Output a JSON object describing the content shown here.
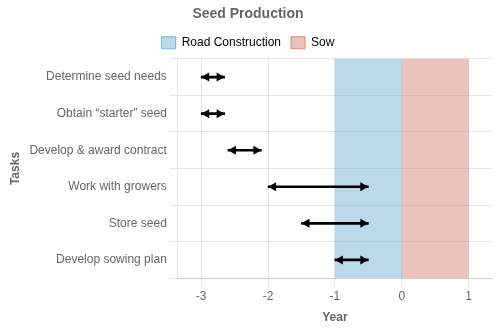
{
  "chart_data": {
    "type": "bar",
    "orientation": "horizontal",
    "title": "Seed Production",
    "xlabel": "Year",
    "ylabel": "Tasks",
    "categories": [
      "Determine seed needs",
      "Obtain “starter” seed",
      "Develop & award contract",
      "Work with growers",
      "Store seed",
      "Develop sowing plan"
    ],
    "values": [
      [
        -3.0,
        -2.65
      ],
      [
        -3.0,
        -2.65
      ],
      [
        -2.6,
        -2.1
      ],
      [
        -2.0,
        -0.5
      ],
      [
        -1.5,
        -0.5
      ],
      [
        -1.0,
        -0.5
      ]
    ],
    "color": "black",
    "marker": "arrow",
    "bands": [
      {
        "name": "Road Construction",
        "color": "#7ab4d8",
        "range": [
          -1,
          0
        ]
      },
      {
        "name": "Sow",
        "color": "#d4897a",
        "range": [
          0,
          1
        ]
      }
    ],
    "xlim": [
      -3.35,
      1.35
    ],
    "xticks": [
      -3,
      -2,
      -1,
      0,
      1
    ],
    "grid": true,
    "legend": "top"
  }
}
